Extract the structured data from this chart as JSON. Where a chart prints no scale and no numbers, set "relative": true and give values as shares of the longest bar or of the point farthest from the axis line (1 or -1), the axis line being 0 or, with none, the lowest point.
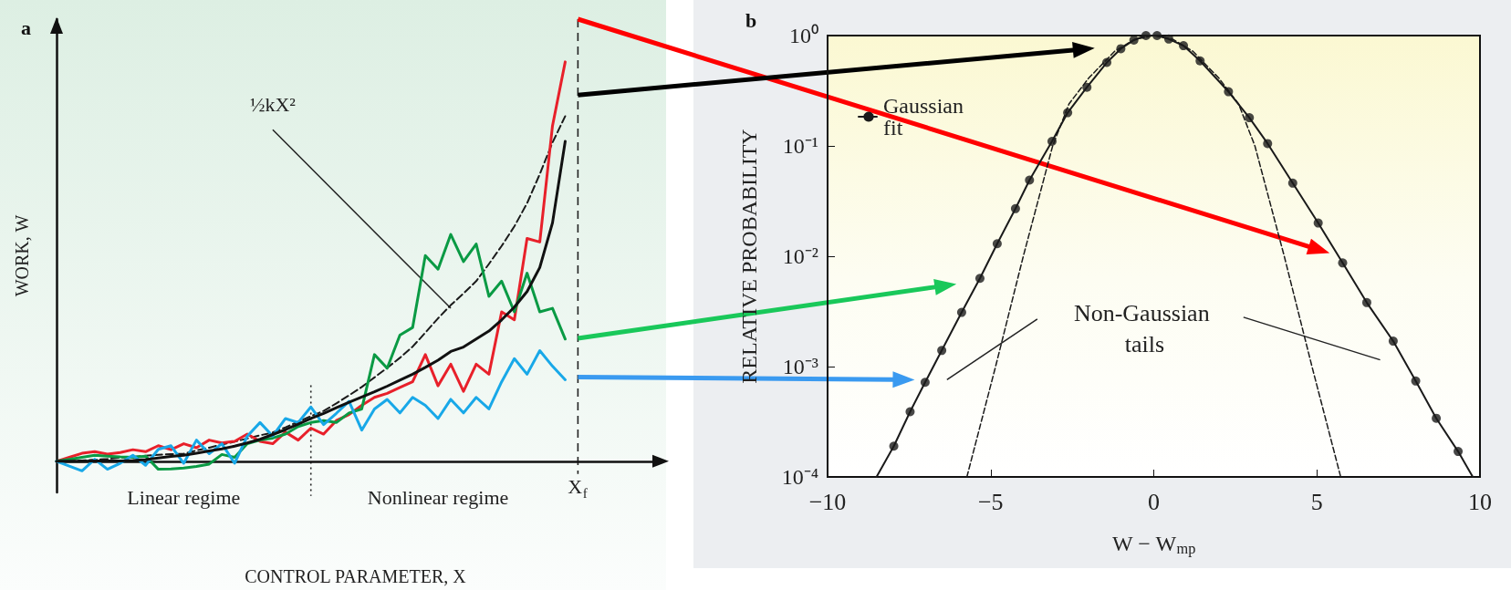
{
  "chart_data": [
    {
      "type": "line",
      "title": "a",
      "xlabel": "CONTROL PARAMETER, X",
      "ylabel": "WORK, W",
      "relative": true,
      "grid": false,
      "legend": false,
      "marker": "none",
      "categories": [
        null,
        null,
        null,
        null,
        null,
        null,
        null,
        null,
        null,
        null,
        null,
        null,
        null,
        null,
        null,
        null,
        null,
        null,
        null,
        null,
        null,
        null,
        null,
        null,
        null,
        null,
        null,
        null,
        null,
        null,
        null,
        null,
        null,
        null,
        null,
        null,
        null,
        null,
        null,
        null,
        null,
        null,
        null,
        null,
        null,
        null,
        null,
        null
      ],
      "series": [
        {
          "color": "#1a1a1a",
          "line_style": "dashed",
          "values": [
            0,
            0.001,
            0.002,
            0.004,
            0.006,
            0.009,
            0.011,
            0.014,
            0.016,
            0.018,
            0.019,
            0.027,
            0.034,
            0.042,
            0.049,
            0.057,
            0.065,
            0.072,
            0.085,
            0.099,
            0.113,
            0.126,
            0.145,
            0.165,
            0.186,
            0.21,
            0.234,
            0.259,
            0.287,
            0.322,
            0.358,
            0.391,
            0.42,
            0.451,
            0.494,
            0.539,
            0.588,
            0.646,
            0.719,
            0.798,
            0.864,
            null,
            null,
            null,
            null,
            null,
            null,
            null
          ]
        },
        {
          "color": "#e8202a",
          "values": [
            0,
            0.01,
            0.02,
            0.024,
            0.018,
            0.022,
            0.029,
            0.024,
            0.039,
            0.029,
            0.044,
            0.034,
            0.053,
            0.046,
            0.05,
            0.068,
            0.05,
            0.044,
            0.073,
            0.053,
            0.083,
            0.068,
            0.102,
            0.117,
            0.14,
            0.16,
            0.17,
            0.185,
            0.199,
            0.267,
            0.189,
            0.243,
            0.175,
            0.243,
            0.218,
            0.374,
            0.354,
            0.558,
            0.549,
            0.84,
            1.0,
            null,
            null,
            null,
            null,
            null,
            null,
            null
          ]
        },
        {
          "color": "#0a9a44",
          "values": [
            0,
            0.005,
            0.01,
            0.015,
            0.013,
            0.011,
            0.01,
            0.013,
            -0.02,
            -0.019,
            -0.017,
            -0.013,
            -0.007,
            0.017,
            0.01,
            0.044,
            0.053,
            0.058,
            0.068,
            0.087,
            0.097,
            0.102,
            0.097,
            0.121,
            0.131,
            0.267,
            0.233,
            0.316,
            0.335,
            0.515,
            0.481,
            0.568,
            0.5,
            0.544,
            0.413,
            0.451,
            0.374,
            0.471,
            0.374,
            0.383,
            0.306,
            null,
            null,
            null,
            null,
            null,
            null,
            null
          ]
        },
        {
          "color": "#18a8e8",
          "values": [
            0,
            -0.012,
            -0.024,
            0.005,
            -0.02,
            -0.005,
            0.015,
            -0.01,
            0.03,
            0.039,
            -0.005,
            0.053,
            0.019,
            0.044,
            -0.005,
            0.063,
            0.097,
            0.063,
            0.107,
            0.097,
            0.136,
            0.092,
            0.12,
            0.15,
            0.078,
            0.131,
            0.155,
            0.121,
            0.16,
            0.14,
            0.107,
            0.155,
            0.121,
            0.16,
            0.131,
            0.199,
            0.257,
            0.218,
            0.277,
            0.238,
            0.204,
            null,
            null,
            null,
            null,
            null,
            null,
            null
          ]
        },
        {
          "color": "#111111",
          "values": [
            0,
            0,
            0,
            0.001,
            0.001,
            0.001,
            0.002,
            0.004,
            0.008,
            0.012,
            0.015,
            0.02,
            0.026,
            0.031,
            0.038,
            0.046,
            0.055,
            0.067,
            0.079,
            0.093,
            0.107,
            0.12,
            0.134,
            0.148,
            0.161,
            0.174,
            0.188,
            0.203,
            0.218,
            0.235,
            0.253,
            0.275,
            0.286,
            0.306,
            0.326,
            0.354,
            0.386,
            0.425,
            0.485,
            0.597,
            0.801,
            null,
            null,
            null,
            null,
            null,
            null,
            null
          ]
        }
      ],
      "annotations": [
        "½kX²",
        "Linear regime",
        "Nonlinear regime",
        "X$_{f}$"
      ]
    },
    {
      "type": "line",
      "title": "b",
      "xlabel": "W − W$_{mp}$",
      "ylabel": "RELATIVE PROBABILITY",
      "log": "y",
      "xlim": [
        -10,
        10
      ],
      "xticks": [
        -10,
        -5,
        0,
        5,
        10
      ],
      "ylim": [
        0.0001,
        1
      ],
      "yticks": [
        {
          "value": 1,
          "label": "10⁰"
        },
        {
          "value": 0.1,
          "label": "10⁻¹"
        },
        {
          "value": 0.01,
          "label": "10⁻²"
        },
        {
          "value": 0.001,
          "label": "10⁻³"
        },
        {
          "value": 0.0001,
          "label": "10⁻⁴"
        }
      ],
      "grid": false,
      "legend": "top left",
      "marker": "none",
      "series": [
        {
          "color": "#1a1a1a",
          "x": [
            -8.5,
            -7.97,
            -7.47,
            -7.01,
            -6.5,
            -5.89,
            -5.33,
            -4.8,
            -4.24,
            -3.81,
            -3.12,
            -2.64,
            -2.05,
            -1.44,
            -1.01,
            -0.61,
            -0.24,
            0.1,
            0.46,
            0.91,
            1.42,
            2.29,
            2.93,
            3.49,
            4.26,
            5.04,
            5.79,
            6.53,
            7.34,
            8.03,
            8.66,
            9.33,
            9.78
          ],
          "values": [
            0.0001,
            0.00019,
            0.00039,
            0.00072,
            0.0014,
            0.0031,
            0.0063,
            0.013,
            0.027,
            0.049,
            0.11,
            0.2,
            0.34,
            0.57,
            0.76,
            0.91,
            1.0,
            1.0,
            0.93,
            0.81,
            0.59,
            0.31,
            0.18,
            0.105,
            0.046,
            0.02,
            0.0087,
            0.0038,
            0.0017,
            0.00074,
            0.00034,
            0.00017,
            0.0001
          ]
        },
        {
          "type": "scatter",
          "marker": "circle",
          "color": "#1a1a1a",
          "x": [
            -7.97,
            -7.47,
            -7.01,
            -6.5,
            -5.89,
            -5.33,
            -4.8,
            -4.24,
            -3.81,
            -3.12,
            -2.64,
            -2.05,
            -1.44,
            -1.01,
            -0.61,
            -0.24,
            0.1,
            0.46,
            0.91,
            1.42,
            2.29,
            2.93,
            3.49,
            4.26,
            5.04,
            5.79,
            6.53,
            7.34,
            8.03,
            8.66,
            9.33
          ],
          "values": [
            0.00019,
            0.00039,
            0.00072,
            0.0014,
            0.0031,
            0.0063,
            0.013,
            0.027,
            0.049,
            0.11,
            0.2,
            0.34,
            0.57,
            0.76,
            0.91,
            1.0,
            1.0,
            0.93,
            0.81,
            0.59,
            0.31,
            0.18,
            0.105,
            0.046,
            0.02,
            0.0087,
            0.0038,
            0.0017,
            0.00074,
            0.00034,
            0.00017
          ]
        },
        {
          "name": "Gaussian fit",
          "color": "#1a1a1a",
          "line_style": "dashed",
          "x": [
            -5.73,
            -4.85,
            -4.0,
            -3.1,
            -2.6,
            -2.0,
            -1.2,
            -0.6,
            0,
            0.6,
            1.2,
            2.0,
            2.6,
            3.1,
            4.0,
            4.85,
            5.73
          ],
          "values": [
            0.0001,
            0.001,
            0.01,
            0.1,
            0.24,
            0.41,
            0.72,
            0.92,
            1.0,
            0.92,
            0.72,
            0.41,
            0.24,
            0.1,
            0.01,
            0.001,
            0.0001
          ]
        }
      ],
      "annotations": [
        "Non-Gaussian tails"
      ]
    }
  ]
}
